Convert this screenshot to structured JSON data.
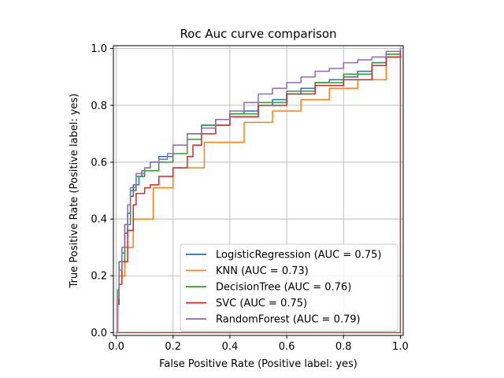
{
  "chart_data": {
    "type": "line",
    "title": "Roc Auc curve comparison",
    "xlabel": "False Positive Rate (Positive label: yes)",
    "ylabel": "True Positive Rate (Positive label: yes)",
    "xlim": [
      -0.01,
      1.01
    ],
    "ylim": [
      -0.01,
      1.01
    ],
    "xticks": [
      0.0,
      0.2,
      0.4,
      0.6,
      0.8,
      1.0
    ],
    "yticks": [
      0.0,
      0.2,
      0.4,
      0.6,
      0.8,
      1.0
    ],
    "xtick_labels": [
      "0.0",
      "0.2",
      "0.4",
      "0.6",
      "0.8",
      "1.0"
    ],
    "ytick_labels": [
      "0.0",
      "0.2",
      "0.4",
      "0.6",
      "0.8",
      "1.0"
    ],
    "grid": true,
    "legend_position": "lower-right",
    "series": [
      {
        "name": "LogisticRegression (AUC = 0.75)",
        "color": "#1f77b4",
        "x": [
          0.0,
          0.005,
          0.01,
          0.02,
          0.03,
          0.04,
          0.05,
          0.06,
          0.08,
          0.1,
          0.12,
          0.15,
          0.2,
          0.25,
          0.3,
          0.35,
          0.4,
          0.45,
          0.5,
          0.55,
          0.6,
          0.65,
          0.7,
          0.75,
          0.8,
          0.85,
          0.9,
          0.95,
          1.0
        ],
        "y": [
          0.0,
          0.1,
          0.2,
          0.28,
          0.35,
          0.42,
          0.48,
          0.52,
          0.55,
          0.58,
          0.6,
          0.62,
          0.66,
          0.7,
          0.73,
          0.75,
          0.77,
          0.78,
          0.8,
          0.82,
          0.84,
          0.86,
          0.88,
          0.89,
          0.9,
          0.92,
          0.95,
          0.98,
          1.0
        ]
      },
      {
        "name": "KNN (AUC = 0.73)",
        "color": "#ff7f0e",
        "x": [
          0.0,
          0.005,
          0.01,
          0.03,
          0.06,
          0.13,
          0.2,
          0.31,
          0.45,
          0.55,
          0.65,
          0.75,
          0.85,
          0.95,
          1.0
        ],
        "y": [
          0.0,
          0.1,
          0.2,
          0.3,
          0.4,
          0.51,
          0.58,
          0.67,
          0.74,
          0.78,
          0.82,
          0.86,
          0.89,
          0.97,
          1.0
        ]
      },
      {
        "name": "DecisionTree (AUC = 0.76)",
        "color": "#2ca02c",
        "x": [
          0.0,
          0.005,
          0.01,
          0.03,
          0.05,
          0.07,
          0.09,
          0.15,
          0.2,
          0.25,
          0.3,
          0.4,
          0.5,
          0.6,
          0.7,
          0.8,
          0.9,
          0.95,
          1.0
        ],
        "y": [
          0.0,
          0.15,
          0.25,
          0.38,
          0.5,
          0.55,
          0.57,
          0.6,
          0.63,
          0.68,
          0.73,
          0.77,
          0.81,
          0.85,
          0.88,
          0.91,
          0.95,
          0.98,
          1.0
        ]
      },
      {
        "name": "SVC (AUC = 0.75)",
        "color": "#d62728",
        "x": [
          0.0,
          0.005,
          0.01,
          0.02,
          0.04,
          0.06,
          0.07,
          0.1,
          0.12,
          0.15,
          0.2,
          0.25,
          0.27,
          0.3,
          0.35,
          0.4,
          0.5,
          0.6,
          0.7,
          0.8,
          0.9,
          0.95,
          1.0
        ],
        "y": [
          0.0,
          0.1,
          0.17,
          0.25,
          0.36,
          0.45,
          0.49,
          0.51,
          0.52,
          0.55,
          0.58,
          0.62,
          0.66,
          0.7,
          0.73,
          0.76,
          0.8,
          0.84,
          0.87,
          0.89,
          0.94,
          0.97,
          1.0
        ]
      },
      {
        "name": "RandomForest (AUC = 0.79)",
        "color": "#9467bd",
        "x": [
          0.0,
          0.005,
          0.01,
          0.02,
          0.03,
          0.04,
          0.05,
          0.07,
          0.1,
          0.12,
          0.15,
          0.18,
          0.2,
          0.25,
          0.3,
          0.35,
          0.4,
          0.45,
          0.5,
          0.55,
          0.6,
          0.65,
          0.7,
          0.75,
          0.8,
          0.85,
          0.9,
          0.95,
          1.0
        ],
        "y": [
          0.0,
          0.12,
          0.22,
          0.3,
          0.38,
          0.45,
          0.51,
          0.56,
          0.58,
          0.6,
          0.61,
          0.63,
          0.66,
          0.7,
          0.72,
          0.75,
          0.78,
          0.81,
          0.84,
          0.86,
          0.88,
          0.9,
          0.92,
          0.93,
          0.95,
          0.96,
          0.97,
          0.99,
          1.0
        ]
      },
      {
        "name": "",
        "color": "#8c564b",
        "x": [
          0.0,
          1.0
        ],
        "y": [
          0.0,
          1.0
        ]
      }
    ]
  }
}
